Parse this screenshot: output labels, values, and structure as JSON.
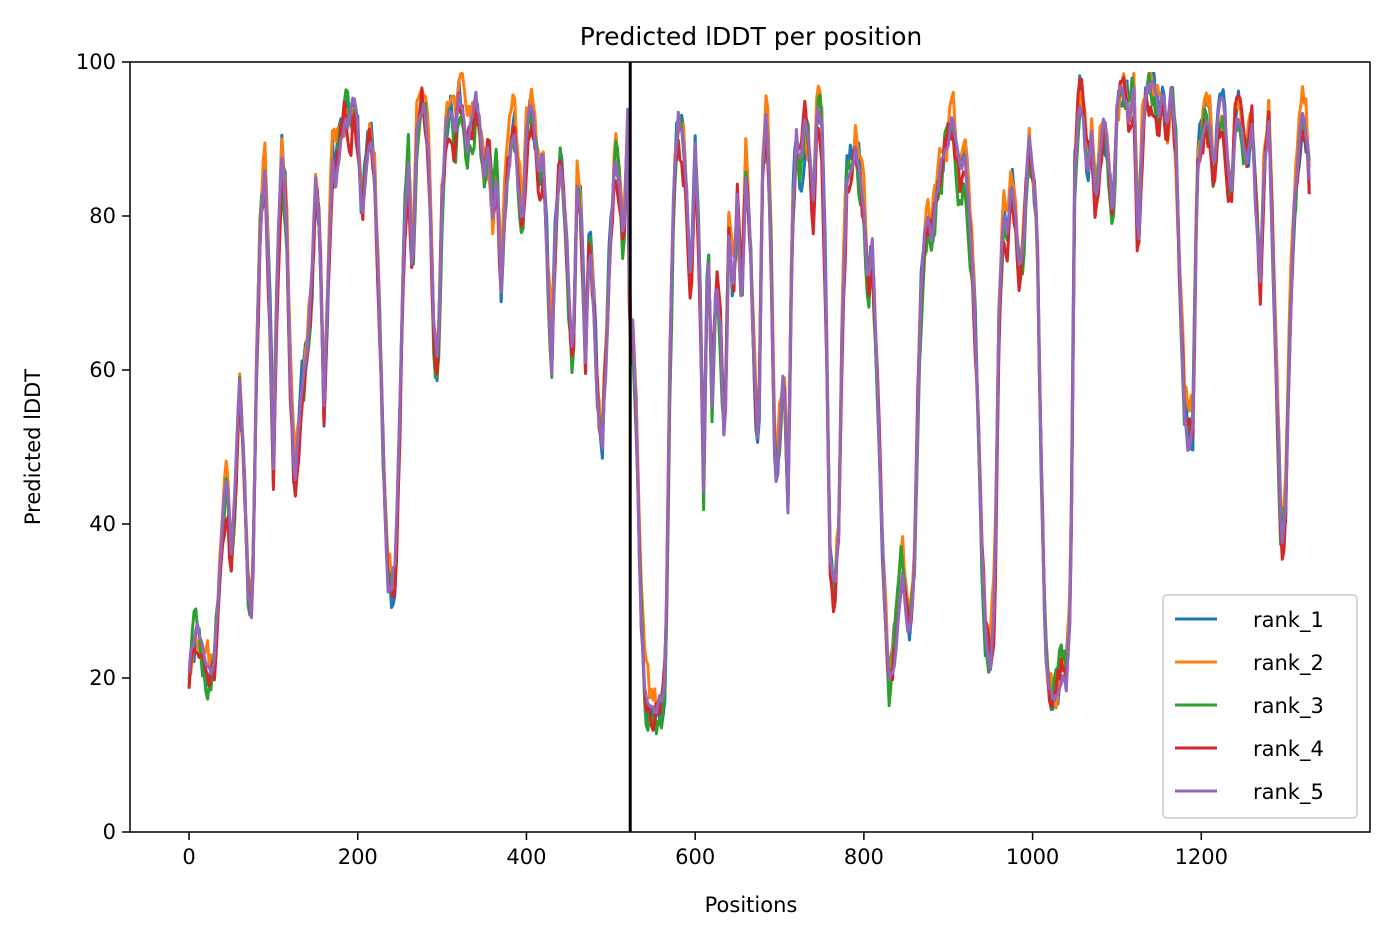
{
  "chart_data": {
    "type": "line",
    "title": "Predicted lDDT per position",
    "xlabel": "Positions",
    "ylabel": "Predicted lDDT",
    "xlim": [
      -70,
      1400
    ],
    "ylim": [
      0,
      100
    ],
    "xticks": [
      0,
      200,
      400,
      600,
      800,
      1000,
      1200
    ],
    "yticks": [
      0,
      20,
      40,
      60,
      80,
      100
    ],
    "grid": false,
    "legend_position": "lower-right",
    "vline_x": 523,
    "base_profile": [
      [
        0,
        22
      ],
      [
        5,
        25
      ],
      [
        10,
        27
      ],
      [
        15,
        24
      ],
      [
        20,
        21
      ],
      [
        25,
        20
      ],
      [
        30,
        22
      ],
      [
        35,
        32
      ],
      [
        40,
        40
      ],
      [
        45,
        47
      ],
      [
        50,
        35
      ],
      [
        55,
        45
      ],
      [
        60,
        58
      ],
      [
        65,
        48
      ],
      [
        70,
        32
      ],
      [
        75,
        28
      ],
      [
        80,
        60
      ],
      [
        85,
        80
      ],
      [
        90,
        86
      ],
      [
        95,
        70
      ],
      [
        100,
        48
      ],
      [
        105,
        75
      ],
      [
        110,
        88
      ],
      [
        115,
        82
      ],
      [
        120,
        60
      ],
      [
        125,
        45
      ],
      [
        130,
        52
      ],
      [
        135,
        58
      ],
      [
        140,
        62
      ],
      [
        145,
        70
      ],
      [
        150,
        85
      ],
      [
        155,
        78
      ],
      [
        160,
        55
      ],
      [
        165,
        72
      ],
      [
        170,
        88
      ],
      [
        175,
        85
      ],
      [
        180,
        90
      ],
      [
        185,
        93
      ],
      [
        190,
        92
      ],
      [
        195,
        94
      ],
      [
        200,
        90
      ],
      [
        205,
        80
      ],
      [
        210,
        88
      ],
      [
        215,
        91
      ],
      [
        220,
        85
      ],
      [
        225,
        70
      ],
      [
        230,
        50
      ],
      [
        235,
        33
      ],
      [
        240,
        31
      ],
      [
        245,
        36
      ],
      [
        250,
        55
      ],
      [
        255,
        78
      ],
      [
        260,
        88
      ],
      [
        265,
        72
      ],
      [
        270,
        90
      ],
      [
        275,
        95
      ],
      [
        280,
        94
      ],
      [
        285,
        85
      ],
      [
        290,
        65
      ],
      [
        295,
        58
      ],
      [
        300,
        82
      ],
      [
        305,
        92
      ],
      [
        310,
        94
      ],
      [
        315,
        90
      ],
      [
        320,
        95
      ],
      [
        325,
        93
      ],
      [
        330,
        89
      ],
      [
        335,
        91
      ],
      [
        340,
        94
      ],
      [
        345,
        92
      ],
      [
        350,
        85
      ],
      [
        355,
        88
      ],
      [
        360,
        80
      ],
      [
        365,
        86
      ],
      [
        370,
        70
      ],
      [
        375,
        82
      ],
      [
        380,
        88
      ],
      [
        385,
        92
      ],
      [
        390,
        85
      ],
      [
        395,
        79
      ],
      [
        400,
        90
      ],
      [
        405,
        93
      ],
      [
        410,
        90
      ],
      [
        415,
        84
      ],
      [
        420,
        88
      ],
      [
        425,
        75
      ],
      [
        430,
        62
      ],
      [
        435,
        80
      ],
      [
        440,
        88
      ],
      [
        445,
        82
      ],
      [
        450,
        70
      ],
      [
        455,
        60
      ],
      [
        460,
        85
      ],
      [
        465,
        80
      ],
      [
        470,
        60
      ],
      [
        475,
        78
      ],
      [
        480,
        68
      ],
      [
        485,
        55
      ],
      [
        490,
        50
      ],
      [
        495,
        62
      ],
      [
        500,
        80
      ],
      [
        505,
        90
      ],
      [
        510,
        85
      ],
      [
        515,
        75
      ],
      [
        520,
        92
      ],
      [
        523,
        60
      ],
      [
        525,
        68
      ],
      [
        530,
        55
      ],
      [
        535,
        30
      ],
      [
        540,
        18
      ],
      [
        545,
        15
      ],
      [
        550,
        14
      ],
      [
        555,
        15
      ],
      [
        560,
        16
      ],
      [
        565,
        22
      ],
      [
        570,
        60
      ],
      [
        575,
        85
      ],
      [
        580,
        93
      ],
      [
        585,
        90
      ],
      [
        590,
        82
      ],
      [
        595,
        70
      ],
      [
        600,
        88
      ],
      [
        605,
        75
      ],
      [
        610,
        45
      ],
      [
        615,
        78
      ],
      [
        620,
        55
      ],
      [
        625,
        72
      ],
      [
        630,
        65
      ],
      [
        635,
        50
      ],
      [
        640,
        78
      ],
      [
        645,
        70
      ],
      [
        650,
        82
      ],
      [
        655,
        68
      ],
      [
        660,
        85
      ],
      [
        665,
        78
      ],
      [
        670,
        60
      ],
      [
        675,
        48
      ],
      [
        680,
        85
      ],
      [
        685,
        94
      ],
      [
        690,
        75
      ],
      [
        695,
        45
      ],
      [
        700,
        52
      ],
      [
        705,
        60
      ],
      [
        710,
        42
      ],
      [
        715,
        78
      ],
      [
        720,
        90
      ],
      [
        725,
        86
      ],
      [
        730,
        92
      ],
      [
        735,
        88
      ],
      [
        740,
        80
      ],
      [
        745,
        95
      ],
      [
        750,
        92
      ],
      [
        755,
        70
      ],
      [
        760,
        35
      ],
      [
        765,
        30
      ],
      [
        770,
        40
      ],
      [
        775,
        70
      ],
      [
        780,
        85
      ],
      [
        785,
        88
      ],
      [
        790,
        90
      ],
      [
        795,
        85
      ],
      [
        800,
        80
      ],
      [
        805,
        70
      ],
      [
        810,
        75
      ],
      [
        815,
        60
      ],
      [
        820,
        45
      ],
      [
        825,
        28
      ],
      [
        830,
        20
      ],
      [
        835,
        22
      ],
      [
        840,
        28
      ],
      [
        845,
        35
      ],
      [
        850,
        30
      ],
      [
        855,
        26
      ],
      [
        860,
        35
      ],
      [
        865,
        60
      ],
      [
        870,
        75
      ],
      [
        875,
        80
      ],
      [
        880,
        78
      ],
      [
        885,
        82
      ],
      [
        890,
        85
      ],
      [
        895,
        88
      ],
      [
        900,
        90
      ],
      [
        905,
        92
      ],
      [
        910,
        88
      ],
      [
        915,
        84
      ],
      [
        920,
        86
      ],
      [
        925,
        80
      ],
      [
        930,
        70
      ],
      [
        935,
        55
      ],
      [
        940,
        35
      ],
      [
        945,
        25
      ],
      [
        950,
        23
      ],
      [
        955,
        30
      ],
      [
        960,
        65
      ],
      [
        965,
        80
      ],
      [
        970,
        78
      ],
      [
        975,
        84
      ],
      [
        980,
        80
      ],
      [
        985,
        72
      ],
      [
        990,
        78
      ],
      [
        995,
        90
      ],
      [
        1000,
        86
      ],
      [
        1005,
        80
      ],
      [
        1010,
        50
      ],
      [
        1015,
        25
      ],
      [
        1020,
        18
      ],
      [
        1025,
        17
      ],
      [
        1030,
        19
      ],
      [
        1035,
        22
      ],
      [
        1040,
        20
      ],
      [
        1045,
        30
      ],
      [
        1050,
        85
      ],
      [
        1055,
        96
      ],
      [
        1060,
        94
      ],
      [
        1065,
        85
      ],
      [
        1070,
        90
      ],
      [
        1075,
        80
      ],
      [
        1080,
        88
      ],
      [
        1085,
        92
      ],
      [
        1090,
        86
      ],
      [
        1095,
        80
      ],
      [
        1100,
        94
      ],
      [
        1105,
        96
      ],
      [
        1110,
        95
      ],
      [
        1115,
        92
      ],
      [
        1120,
        96
      ],
      [
        1125,
        75
      ],
      [
        1130,
        90
      ],
      [
        1135,
        96
      ],
      [
        1140,
        97
      ],
      [
        1145,
        95
      ],
      [
        1150,
        93
      ],
      [
        1155,
        96
      ],
      [
        1160,
        92
      ],
      [
        1165,
        96
      ],
      [
        1170,
        88
      ],
      [
        1175,
        70
      ],
      [
        1180,
        55
      ],
      [
        1185,
        50
      ],
      [
        1190,
        52
      ],
      [
        1195,
        85
      ],
      [
        1200,
        90
      ],
      [
        1205,
        94
      ],
      [
        1210,
        92
      ],
      [
        1215,
        86
      ],
      [
        1220,
        92
      ],
      [
        1225,
        95
      ],
      [
        1230,
        88
      ],
      [
        1235,
        82
      ],
      [
        1240,
        92
      ],
      [
        1245,
        94
      ],
      [
        1250,
        90
      ],
      [
        1255,
        88
      ],
      [
        1260,
        92
      ],
      [
        1265,
        80
      ],
      [
        1270,
        70
      ],
      [
        1275,
        88
      ],
      [
        1280,
        92
      ],
      [
        1285,
        75
      ],
      [
        1290,
        55
      ],
      [
        1295,
        38
      ],
      [
        1300,
        42
      ],
      [
        1305,
        65
      ],
      [
        1310,
        80
      ],
      [
        1315,
        88
      ],
      [
        1320,
        92
      ],
      [
        1325,
        90
      ],
      [
        1328,
        85
      ]
    ],
    "series": [
      {
        "name": "rank_1",
        "color": "#1f77b4",
        "offset": 0.2,
        "seed": 11
      },
      {
        "name": "rank_2",
        "color": "#ff7f0e",
        "offset": 1.2,
        "seed": 23
      },
      {
        "name": "rank_3",
        "color": "#2ca02c",
        "offset": -0.6,
        "seed": 37
      },
      {
        "name": "rank_4",
        "color": "#d62728",
        "offset": -0.9,
        "seed": 51
      },
      {
        "name": "rank_5",
        "color": "#9467bd",
        "offset": 0.0,
        "seed": 0
      }
    ],
    "vline_color": "#000000"
  }
}
